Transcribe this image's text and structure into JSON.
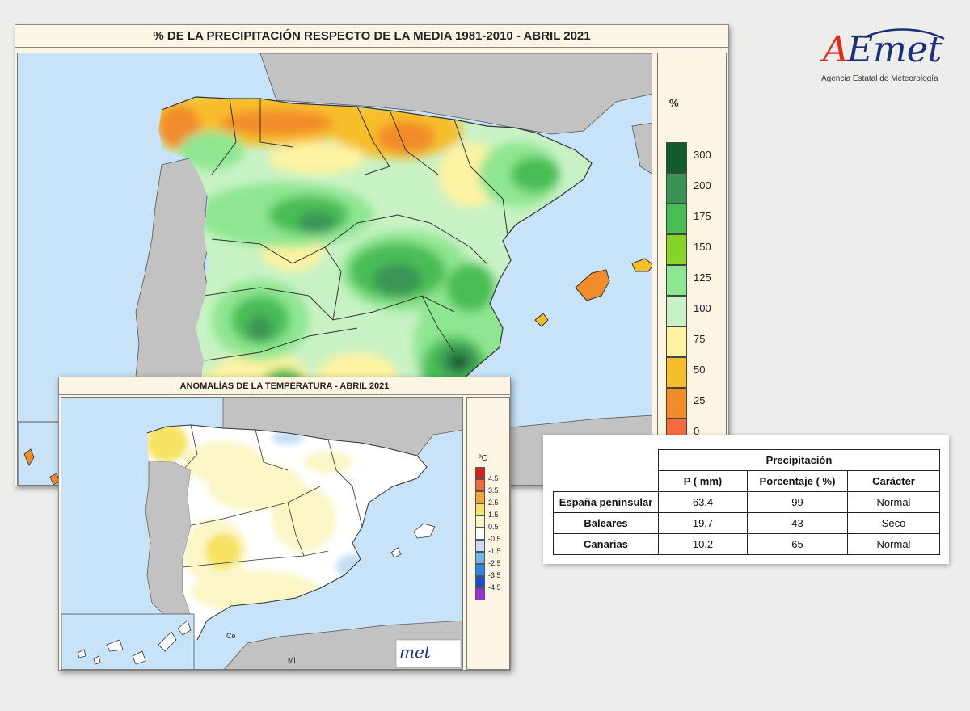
{
  "precip_map": {
    "title": "% DE LA PRECIPITACIÓN RESPECTO DE LA MEDIA 1981-2010 - ABRIL 2021",
    "legend": {
      "unit": "%",
      "ticks": [
        "300",
        "200",
        "175",
        "150",
        "125",
        "100",
        "75",
        "50",
        "25",
        "0"
      ],
      "colors": [
        "#125c2c",
        "#3b9456",
        "#49bd55",
        "#86d32a",
        "#8ee691",
        "#c8f2c5",
        "#fdf3a2",
        "#f7be2c",
        "#f28c2b",
        "#f56a3c"
      ]
    }
  },
  "temp_map": {
    "title": "ANOMALÍAS DE LA TEMPERATURA - ABRIL 2021",
    "legend": {
      "unit": "ºC",
      "ticks": [
        "4.5",
        "3.5",
        "2.5",
        "1.5",
        "0.5",
        "-0.5",
        "-1.5",
        "-2.5",
        "-3.5",
        "-4.5"
      ],
      "colors": [
        "#d81e1e",
        "#ef6b3a",
        "#f3a53a",
        "#f6e364",
        "#fbf6c6",
        "#ffffff",
        "#c4def4",
        "#6fb8ef",
        "#2a8ae6",
        "#1b4fcf",
        "#9a2fd7"
      ]
    },
    "labels": {
      "ceuta": "Ce",
      "melilla": "Ml"
    }
  },
  "table": {
    "group_header": "Precipitación",
    "columns": [
      "P ( mm)",
      "Porcentaje ( %)",
      "Carácter"
    ],
    "rows": [
      {
        "region": "España peninsular",
        "p": "63,4",
        "pct": "99",
        "caracter": "Normal"
      },
      {
        "region": "Baleares",
        "p": "19,7",
        "pct": "43",
        "caracter": "Seco"
      },
      {
        "region": "Canarias",
        "p": "10,2",
        "pct": "65",
        "caracter": "Normal"
      }
    ]
  },
  "logo": {
    "name_a": "A",
    "name_e": "E",
    "name_met": "met",
    "subtitle": "Agencia Estatal de Meteorología"
  },
  "colors": {
    "sea": "#c8e2f8",
    "land_foreign": "#c2c2c2",
    "border": "#333333",
    "panel_bg": "#fdf5e3"
  }
}
